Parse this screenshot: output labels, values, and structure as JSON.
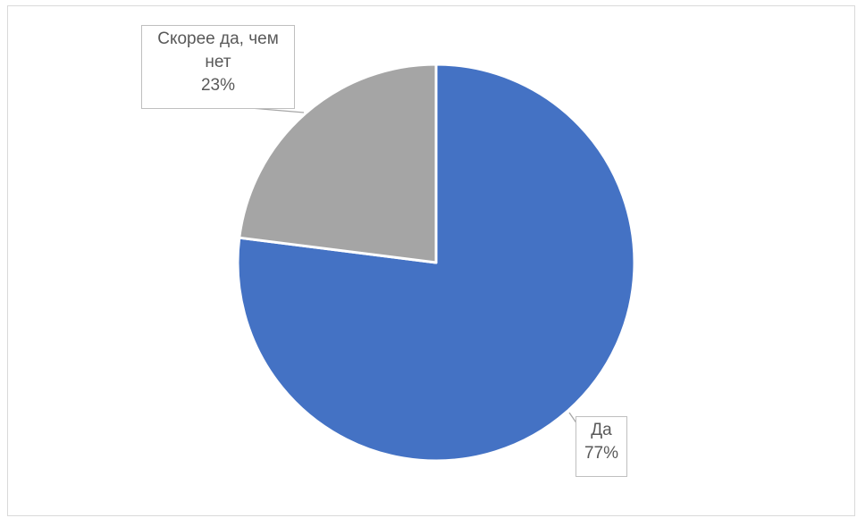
{
  "chart_data": {
    "type": "pie",
    "start_angle_deg": 0,
    "direction": "clockwise",
    "slices": [
      {
        "label": "Да",
        "value": 77,
        "value_label": "77%",
        "color": "#4472C4"
      },
      {
        "label": "Скорее да, чем нет",
        "label_lines": [
          "Скорее да, чем",
          "нет"
        ],
        "value": 23,
        "value_label": "23%",
        "color": "#A5A5A5"
      }
    ],
    "legend": "none",
    "data_labels": "callouts"
  }
}
